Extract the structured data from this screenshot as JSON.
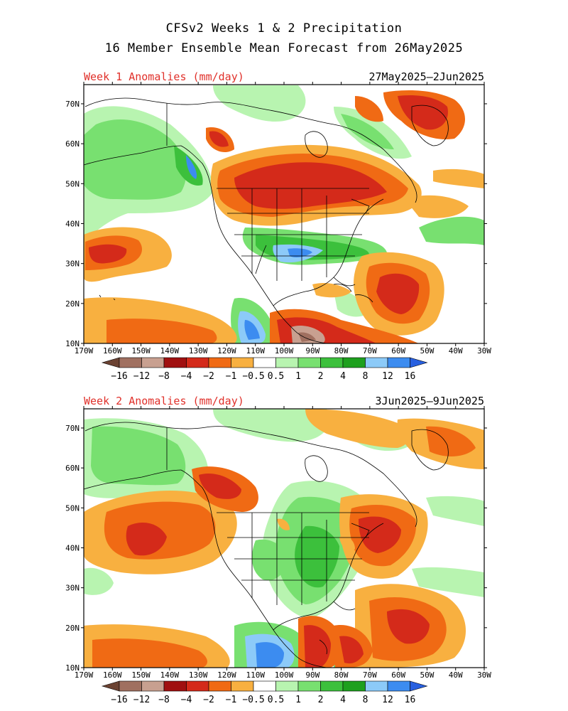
{
  "title": {
    "line1": "CFSv2 Weeks 1 & 2 Precipitation",
    "line2": "16 Member Ensemble Mean Forecast from 26May2025"
  },
  "panels": [
    {
      "label": "Week 1 Anomalies (mm/day)",
      "dates": "27May2025—2Jun2025"
    },
    {
      "label": "Week 2 Anomalies (mm/day)",
      "dates": "3Jun2025—9Jun2025"
    }
  ],
  "axes": {
    "lat_labels": [
      "70N",
      "60N",
      "50N",
      "40N",
      "30N",
      "20N",
      "10N"
    ],
    "lon_labels": [
      "170W",
      "160W",
      "150W",
      "140W",
      "130W",
      "120W",
      "110W",
      "100W",
      "90W",
      "80W",
      "70W",
      "60W",
      "50W",
      "40W",
      "30W"
    ]
  },
  "colorbar": {
    "labels": [
      "−16",
      "−12",
      "−8",
      "−4",
      "−2",
      "−1",
      "−0.5",
      "0.5",
      "1",
      "2",
      "4",
      "8",
      "12",
      "16"
    ],
    "colors": [
      "#6b4232",
      "#a07060",
      "#c8a090",
      "#a01010",
      "#d42a1a",
      "#f06a14",
      "#f8b040",
      "#ffffff",
      "#b8f4b0",
      "#78e070",
      "#3cc03c",
      "#1ea01e",
      "#8ccaf8",
      "#3c8cf0",
      "#2860e0"
    ]
  },
  "colors": {
    "title_red": "#e0302a"
  }
}
